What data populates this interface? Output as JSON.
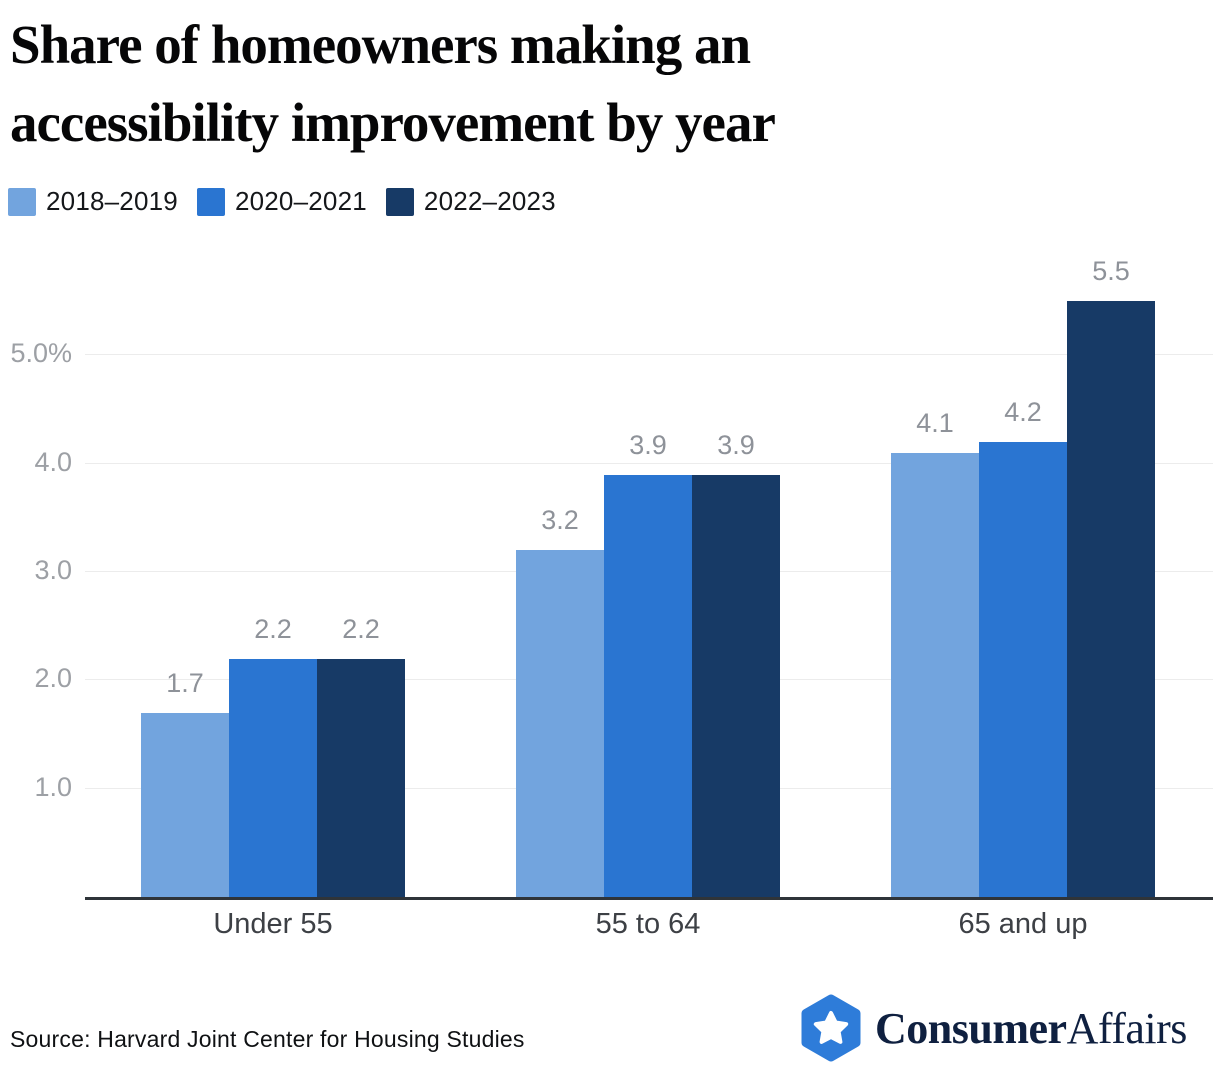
{
  "title": {
    "line1": "Share of homeowners making an",
    "line2": "accessibility improvement by year"
  },
  "chart_data": {
    "type": "bar",
    "categories": [
      "Under 55",
      "55 to 64",
      "65 and up"
    ],
    "series": [
      {
        "name": "2018–2019",
        "color": "#72A4DE",
        "values": [
          1.7,
          3.2,
          4.1
        ]
      },
      {
        "name": "2020–2021",
        "color": "#2A75D1",
        "values": [
          2.2,
          3.9,
          4.2
        ]
      },
      {
        "name": "2022–2023",
        "color": "#173A66",
        "values": [
          2.2,
          3.9,
          5.5
        ]
      }
    ],
    "title": "Share of homeowners making an accessibility improvement by year",
    "xlabel": "",
    "ylabel": "",
    "ylim": [
      0,
      6
    ],
    "y_ticks": [
      {
        "value": 1,
        "label": "1.0"
      },
      {
        "value": 2,
        "label": "2.0"
      },
      {
        "value": 3,
        "label": "3.0"
      },
      {
        "value": 4,
        "label": "4.0"
      },
      {
        "value": 5,
        "label": "5.0%"
      }
    ],
    "grid": true,
    "legend_position": "top-left",
    "value_labels": true
  },
  "footer": {
    "source": "Source: Harvard Joint Center for Housing Studies",
    "brand_bold": "Consumer",
    "brand_regular": "Affairs"
  },
  "colors": {
    "series1": "#72A4DE",
    "series2": "#2A75D1",
    "series3": "#173A66",
    "gridline": "#ececec",
    "axis_line": "#2f3439",
    "tick_label": "#9da0a5",
    "value_label": "#8e9299",
    "category_label": "#3d4045",
    "brand_blue": "#2E7CD9",
    "brand_navy": "#0f2040"
  }
}
